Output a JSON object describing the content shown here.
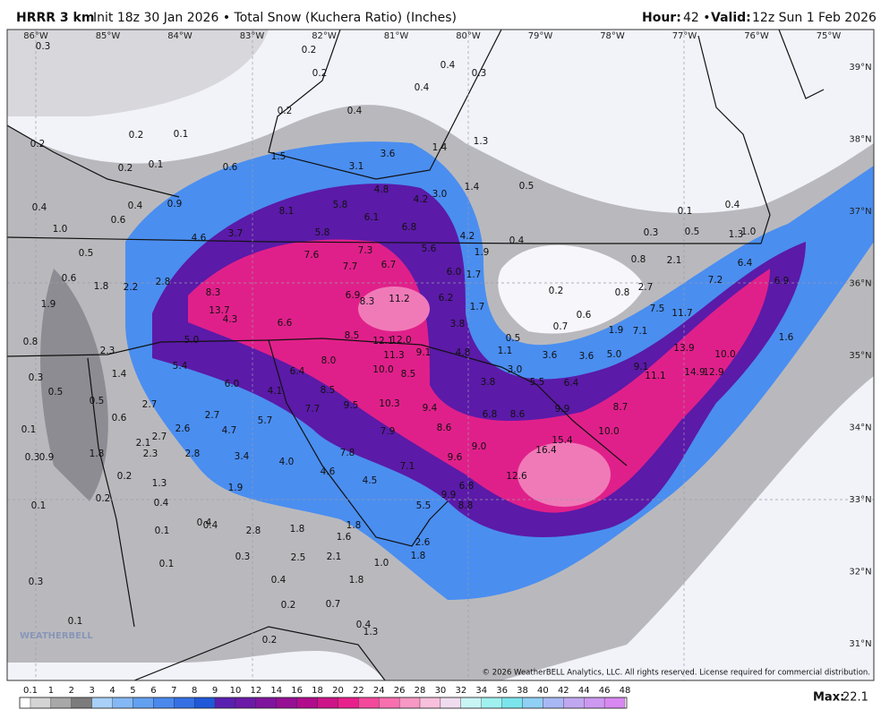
{
  "header": {
    "model": "HRRR 3 km",
    "description": "Init 18z 30 Jan 2026 • Total Snow (Kuchera Ratio) (Inches)",
    "hour_label": "Hour:",
    "hour": "42 •",
    "valid_label": "Valid:",
    "valid": "12z Sun 1 Feb 2026"
  },
  "map": {
    "longitudes": [
      "86°W",
      "85°W",
      "84°W",
      "83°W",
      "82°W",
      "81°W",
      "80°W",
      "79°W",
      "78°W",
      "77°W",
      "76°W",
      "75°W"
    ],
    "latitudes": [
      "39°N",
      "38°N",
      "37°N",
      "36°N",
      "35°N",
      "34°N",
      "33°N",
      "32°N",
      "31°N"
    ],
    "point_labels": [
      "0.3",
      "0.2",
      "0.2",
      "0.4",
      "0.3",
      "0.4",
      "0.2",
      "0.4",
      "0.2",
      "0.1",
      "0.2",
      "3.6",
      "1.4",
      "1.3",
      "1.5",
      "3.1",
      "0.2",
      "0.1",
      "0.6",
      "0.5",
      "4.8",
      "4.2",
      "3.0",
      "1.4",
      "0.4",
      "0.4",
      "0.9",
      "0.6",
      "8.1",
      "5.8",
      "6.1",
      "6.8",
      "0.1",
      "0.4",
      "1.0",
      "4.6",
      "3.7",
      "5.8",
      "4.2",
      "1.9",
      "0.4",
      "0.3",
      "0.5",
      "1.3",
      "1.0",
      "0.5",
      "7.6",
      "7.3",
      "5.6",
      "0.8",
      "2.1",
      "6.4",
      "0.6",
      "1.8",
      "2.2",
      "2.8",
      "7.7",
      "6.7",
      "6.0",
      "1.7",
      "7.2",
      "6.9",
      "0.2",
      "0.8",
      "2.7",
      "8.3",
      "6.9",
      "8.3",
      "11.2",
      "6.2",
      "1.7",
      "1.9",
      "13.7",
      "4.3",
      "6.6",
      "3.8",
      "7.5",
      "11.7",
      "0.6",
      "0.7",
      "1.9",
      "7.1",
      "0.8",
      "5.0",
      "8.5",
      "12.1",
      "12.0",
      "0.5",
      "2.3",
      "13.9",
      "1.6",
      "11.3",
      "9.1",
      "4.8",
      "3.6",
      "3.6",
      "5.0",
      "1.1",
      "5.4",
      "8.0",
      "10.0",
      "10.0",
      "1.4",
      "6.4",
      "8.5",
      "3.0",
      "9.1",
      "11.1",
      "14.9",
      "12.9",
      "0.3",
      "6.0",
      "4.1",
      "8.5",
      "3.8",
      "5.5",
      "6.4",
      "0.5",
      "0.5",
      "2.7",
      "9.5",
      "10.3",
      "9.4",
      "7.7",
      "2.7",
      "5.7",
      "6.8",
      "8.6",
      "9.9",
      "8.7",
      "0.6",
      "0.1",
      "7.9",
      "8.6",
      "2.7",
      "2.6",
      "4.7",
      "10.0",
      "15.4",
      "2.1",
      "0.3",
      "0.9",
      "1.8",
      "2.3",
      "2.8",
      "3.4",
      "7.8",
      "9.0",
      "16.4",
      "4.0",
      "7.1",
      "9.6",
      "0.2",
      "1.3",
      "4.6",
      "4.5",
      "1.9",
      "6.8",
      "12.6",
      "0.2",
      "0.1",
      "0.4",
      "9.9",
      "5.5",
      "8.8",
      "0.4",
      "0.4",
      "0.1",
      "2.8",
      "1.8",
      "1.8",
      "1.6",
      "2.6",
      "1.8",
      "0.1",
      "0.3",
      "2.5",
      "2.1",
      "1.0",
      "0.3",
      "0.4",
      "1.8",
      "0.2",
      "0.7",
      "0.1",
      "0.4",
      "1.3",
      "0.2"
    ],
    "logo": "WEATHERBELL",
    "copyright": "© 2026 WeatherBELL Analytics, LLC. All rights reserved. License required for commercial distribution."
  },
  "colorbar": {
    "labels": [
      "0.1",
      "1",
      "2",
      "3",
      "4",
      "5",
      "6",
      "7",
      "8",
      "9",
      "10",
      "12",
      "14",
      "16",
      "18",
      "20",
      "22",
      "24",
      "26",
      "28",
      "30",
      "32",
      "34",
      "36",
      "38",
      "40",
      "42",
      "44",
      "46",
      "48"
    ],
    "colors": [
      "#ffffff",
      "#d4d4d4",
      "#a8a8a8",
      "#7c7c7c",
      "#a8d0f8",
      "#84b8f4",
      "#62a0f0",
      "#4a88ec",
      "#3470e4",
      "#2058d8",
      "#5a20b0",
      "#6c1aa8",
      "#80149e",
      "#960f94",
      "#b00c8c",
      "#cc1488",
      "#e8208c",
      "#f4489c",
      "#f870b0",
      "#f898c4",
      "#f8c0dc",
      "#f0dcf0",
      "#c8f4f4",
      "#a0f0f0",
      "#7ce4ec",
      "#90d0f4",
      "#a8b8f4",
      "#c0a8f0",
      "#cc98f0",
      "#d888f0"
    ]
  },
  "footer": {
    "max_label": "Max:",
    "max": "22.1"
  }
}
